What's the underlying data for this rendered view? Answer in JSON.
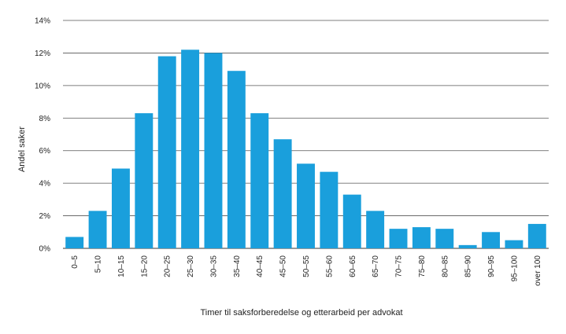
{
  "chart_data": {
    "type": "bar",
    "title": "",
    "xlabel": "Timer til saksforberedelse og etterarbeid per advokat",
    "ylabel": "Andel saker",
    "ylim": [
      0,
      14
    ],
    "yticks": [
      0,
      2,
      4,
      6,
      8,
      10,
      12,
      14
    ],
    "ytick_labels": [
      "0%",
      "2%",
      "4%",
      "6%",
      "8%",
      "10%",
      "12%",
      "14%"
    ],
    "grid": true,
    "bar_color": "#1a9fdc",
    "categories": [
      "0–5",
      "5–10",
      "10–15",
      "15–20",
      "20–25",
      "25–30",
      "30–35",
      "35–40",
      "40–45",
      "45–50",
      "50–55",
      "55–60",
      "60–65",
      "65–70",
      "70–75",
      "75–80",
      "80–85",
      "85–90",
      "90–95",
      "95–100",
      "over 100"
    ],
    "values": [
      0.7,
      2.3,
      4.9,
      8.3,
      11.8,
      12.2,
      12.0,
      10.9,
      8.3,
      6.7,
      5.2,
      4.7,
      3.3,
      2.3,
      1.2,
      1.3,
      1.2,
      0.2,
      1.0,
      0.5,
      1.5
    ]
  }
}
